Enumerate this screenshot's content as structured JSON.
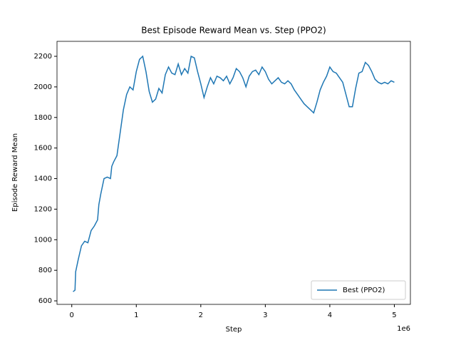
{
  "chart_data": {
    "type": "line",
    "title": "Best Episode Reward Mean vs. Step (PPO2)",
    "xlabel": "Step",
    "ylabel": "Episode Reward Mean",
    "x_offset_label": "1e6",
    "x": [
      20000,
      50000,
      60000,
      100000,
      150000,
      200000,
      250000,
      300000,
      350000,
      400000,
      420000,
      450000,
      500000,
      550000,
      600000,
      620000,
      650000,
      700000,
      750000,
      800000,
      850000,
      900000,
      950000,
      1000000,
      1050000,
      1100000,
      1150000,
      1200000,
      1250000,
      1300000,
      1350000,
      1400000,
      1450000,
      1500000,
      1550000,
      1600000,
      1650000,
      1700000,
      1750000,
      1800000,
      1850000,
      1900000,
      1950000,
      2000000,
      2050000,
      2100000,
      2150000,
      2200000,
      2250000,
      2300000,
      2350000,
      2400000,
      2450000,
      2500000,
      2550000,
      2600000,
      2650000,
      2700000,
      2750000,
      2800000,
      2850000,
      2900000,
      2950000,
      3000000,
      3050000,
      3100000,
      3150000,
      3200000,
      3250000,
      3300000,
      3350000,
      3400000,
      3450000,
      3500000,
      3550000,
      3600000,
      3650000,
      3700000,
      3750000,
      3800000,
      3850000,
      3900000,
      3950000,
      4000000,
      4050000,
      4100000,
      4150000,
      4200000,
      4250000,
      4300000,
      4350000,
      4400000,
      4450000,
      4500000,
      4550000,
      4600000,
      4650000,
      4700000,
      4750000,
      4800000,
      4850000,
      4900000,
      4950000,
      5000000
    ],
    "series": [
      {
        "name": "Best (PPO2)",
        "color": "#1f77b4",
        "values": [
          660,
          670,
          790,
          870,
          960,
          990,
          980,
          1060,
          1090,
          1130,
          1230,
          1300,
          1400,
          1410,
          1400,
          1480,
          1510,
          1550,
          1700,
          1850,
          1950,
          2000,
          1980,
          2100,
          2180,
          2200,
          2100,
          1970,
          1900,
          1920,
          1990,
          1960,
          2080,
          2130,
          2090,
          2080,
          2150,
          2080,
          2120,
          2090,
          2200,
          2190,
          2100,
          2020,
          1930,
          2000,
          2060,
          2020,
          2070,
          2060,
          2040,
          2070,
          2020,
          2060,
          2120,
          2100,
          2060,
          2000,
          2070,
          2100,
          2110,
          2080,
          2130,
          2100,
          2050,
          2020,
          2040,
          2060,
          2030,
          2020,
          2040,
          2020,
          1980,
          1950,
          1920,
          1890,
          1870,
          1850,
          1830,
          1900,
          1980,
          2030,
          2070,
          2130,
          2100,
          2090,
          2060,
          2030,
          1950,
          1870,
          1870,
          1990,
          2090,
          2100,
          2160,
          2140,
          2100,
          2050,
          2030,
          2020,
          2030,
          2020,
          2040,
          2030
        ]
      }
    ],
    "xlim": [
      -229000,
      5249000
    ],
    "xticks": [
      {
        "value": 0,
        "label": "0"
      },
      {
        "value": 1000000,
        "label": "1"
      },
      {
        "value": 2000000,
        "label": "2"
      },
      {
        "value": 3000000,
        "label": "3"
      },
      {
        "value": 4000000,
        "label": "4"
      },
      {
        "value": 5000000,
        "label": "5"
      }
    ],
    "ylim": [
      577,
      2298
    ],
    "yticks": [
      600,
      800,
      1000,
      1200,
      1400,
      1600,
      1800,
      2000,
      2200
    ],
    "legend": "lower right"
  }
}
